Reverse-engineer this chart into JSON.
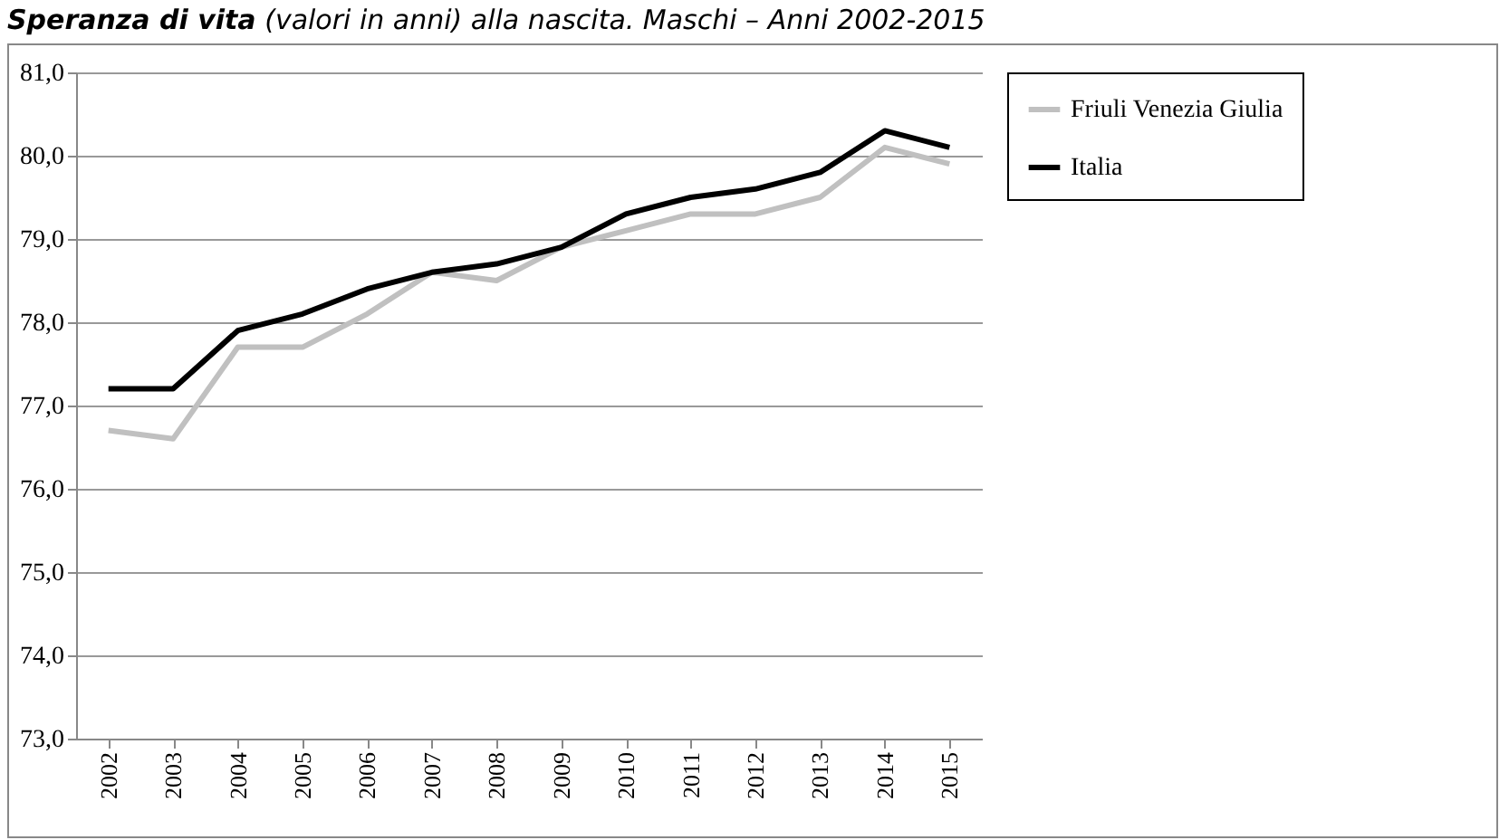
{
  "chart_data": {
    "type": "line",
    "title": "Speranza di vita",
    "subtitle": "(valori in anni) alla nascita. Maschi – Anni 2002-2015",
    "categories": [
      "2002",
      "2003",
      "2004",
      "2005",
      "2006",
      "2007",
      "2008",
      "2009",
      "2010",
      "2011",
      "2012",
      "2013",
      "2014",
      "2015"
    ],
    "series": [
      {
        "name": "Friuli Venezia Giulia",
        "color": "#c0c0c0",
        "values": [
          76.7,
          76.6,
          77.7,
          77.7,
          78.1,
          78.6,
          78.5,
          78.9,
          79.1,
          79.3,
          79.3,
          79.5,
          80.1,
          79.9
        ]
      },
      {
        "name": "Italia",
        "color": "#000000",
        "values": [
          77.2,
          77.2,
          77.9,
          78.1,
          78.4,
          78.6,
          78.7,
          78.9,
          79.3,
          79.5,
          79.6,
          79.8,
          80.3,
          80.1
        ]
      }
    ],
    "ylim": [
      73,
      81
    ],
    "yticks": [
      {
        "value": 73,
        "label": "73,0"
      },
      {
        "value": 74,
        "label": "74,0"
      },
      {
        "value": 75,
        "label": "75,0"
      },
      {
        "value": 76,
        "label": "76,0"
      },
      {
        "value": 77,
        "label": "77,0"
      },
      {
        "value": 78,
        "label": "78,0"
      },
      {
        "value": 79,
        "label": "79,0"
      },
      {
        "value": 80,
        "label": "80,0"
      },
      {
        "value": 81,
        "label": "81,0"
      }
    ],
    "grid": "y",
    "legend": "right",
    "marker": "none",
    "line_style": "solid"
  }
}
